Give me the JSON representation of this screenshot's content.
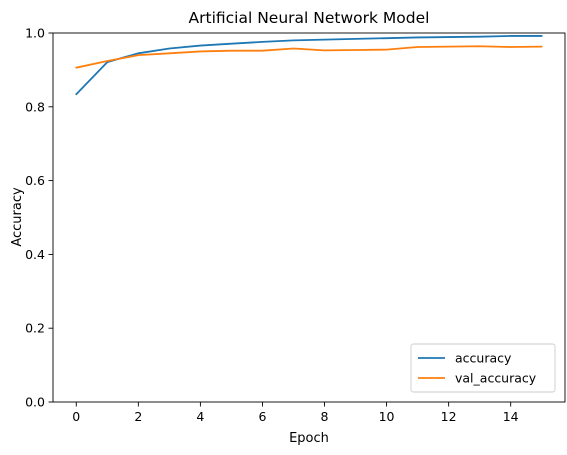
{
  "chart_data": {
    "type": "line",
    "title": "Artificial Neural Network Model",
    "xlabel": "Epoch",
    "ylabel": "Accuracy",
    "xlim": [
      -0.75,
      15.75
    ],
    "ylim": [
      0.0,
      1.0
    ],
    "xticks": [
      0,
      2,
      4,
      6,
      8,
      10,
      12,
      14
    ],
    "yticks": [
      0.0,
      0.2,
      0.4,
      0.6,
      0.8,
      1.0
    ],
    "xtick_labels": [
      "0",
      "2",
      "4",
      "6",
      "8",
      "10",
      "12",
      "14"
    ],
    "ytick_labels": [
      "0.0",
      "0.2",
      "0.4",
      "0.6",
      "0.8",
      "1.0"
    ],
    "grid": false,
    "legend_position": "lower right",
    "x": [
      0,
      1,
      2,
      3,
      4,
      5,
      6,
      7,
      8,
      9,
      10,
      11,
      12,
      13,
      14,
      15
    ],
    "series": [
      {
        "name": "accuracy",
        "color": "#1f77b4",
        "values": [
          0.834,
          0.921,
          0.945,
          0.958,
          0.966,
          0.971,
          0.976,
          0.98,
          0.982,
          0.984,
          0.986,
          0.988,
          0.989,
          0.99,
          0.992,
          0.992
        ]
      },
      {
        "name": "val_accuracy",
        "color": "#ff7f0e",
        "values": [
          0.906,
          0.924,
          0.94,
          0.945,
          0.95,
          0.952,
          0.952,
          0.958,
          0.953,
          0.954,
          0.955,
          0.962,
          0.963,
          0.964,
          0.962,
          0.963
        ]
      }
    ]
  }
}
